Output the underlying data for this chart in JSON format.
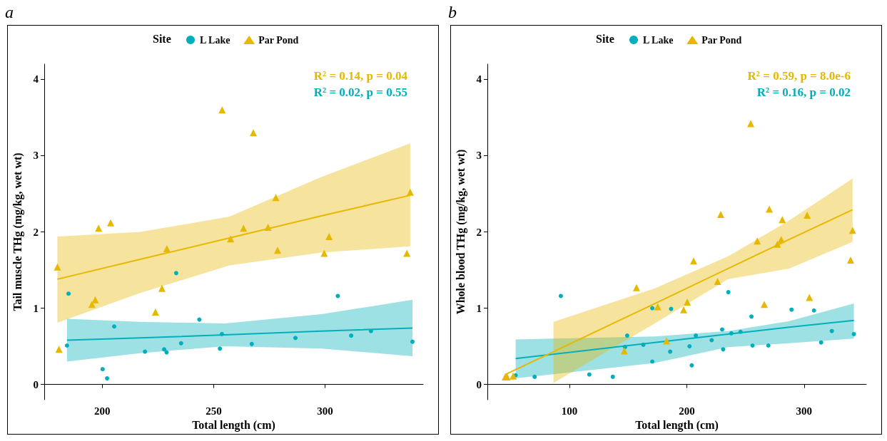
{
  "chart_data": [
    {
      "type": "scatter",
      "title": "a",
      "xlabel": "Total length (cm)",
      "ylabel": "Tail muscle THg (mg/kg, wet wt)",
      "legend_title": "Site",
      "legend": "top",
      "grid": false,
      "annotations": [
        "R² = 0.14, p = 0.04",
        "R² = 0.02, p = 0.55"
      ],
      "xlim": [
        174,
        344
      ],
      "xticks": [
        200,
        250,
        300
      ],
      "ylim": [
        -0.2,
        4.2
      ],
      "yticks": [
        0,
        1,
        2,
        3,
        4
      ],
      "series": [
        {
          "name": "L Lake",
          "marker": "circle",
          "color": "#00afbb",
          "x": [
            184.2,
            184.9,
            200.2,
            202.2,
            205.4,
            219.2,
            227.8,
            228.9,
            233.2,
            235.4,
            243.6,
            252.8,
            253.7,
            267.1,
            286.7,
            305.7,
            311.7,
            320.6,
            339.2
          ],
          "values": [
            0.51,
            1.19,
            0.2,
            0.08,
            0.76,
            0.43,
            0.46,
            0.42,
            1.46,
            0.54,
            0.85,
            0.47,
            0.66,
            0.53,
            0.61,
            1.16,
            0.64,
            0.7,
            0.56
          ]
        },
        {
          "name": "Par Pond",
          "marker": "triangle",
          "color": "#e7b800",
          "x": [
            179.9,
            180.6,
            195.4,
            196.9,
            198.4,
            203.8,
            223.9,
            226.8,
            229,
            253.8,
            257.6,
            263.4,
            267.8,
            274.4,
            277.9,
            278.7,
            299.6,
            301.8,
            336.7,
            338.2
          ],
          "values": [
            1.54,
            0.46,
            1.05,
            1.11,
            2.05,
            2.12,
            0.95,
            1.26,
            1.78,
            3.6,
            1.91,
            2.05,
            3.3,
            2.06,
            2.45,
            1.76,
            1.72,
            1.94,
            1.72,
            2.52
          ]
        },
        {
          "type": "line",
          "color": "#00afbb",
          "x": [
            184.2,
            217,
            255,
            298.3,
            339.2
          ],
          "values": [
            0.58,
            0.61,
            0.65,
            0.7,
            0.74
          ],
          "lower": [
            0.3,
            0.41,
            0.5,
            0.47,
            0.37
          ],
          "upper": [
            0.86,
            0.82,
            0.8,
            0.92,
            1.11
          ]
        },
        {
          "type": "line",
          "color": "#e7b800",
          "x": [
            179.9,
            217,
            257.1,
            298.3,
            338.2
          ],
          "values": [
            1.38,
            1.64,
            1.92,
            2.21,
            2.48
          ],
          "lower": [
            0.81,
            1.2,
            1.56,
            1.73,
            1.81
          ],
          "upper": [
            1.94,
            2.0,
            2.2,
            2.72,
            3.16
          ]
        }
      ]
    },
    {
      "type": "scatter",
      "title": "b",
      "xlabel": "Total length (cm)",
      "ylabel": "Whole blood THg (mg/kg, wet wt)",
      "legend_title": "Site",
      "legend": "top",
      "grid": false,
      "annotations": [
        "R² = 0.59, p = 8.0e-6",
        "R² = 0.16, p = 0.02"
      ],
      "xlim": [
        30,
        353
      ],
      "xticks": [
        100,
        200,
        300
      ],
      "ylim": [
        -0.2,
        4.2
      ],
      "yticks": [
        0,
        1,
        2,
        3,
        4
      ],
      "series": [
        {
          "name": "L Lake",
          "marker": "circle",
          "color": "#00afbb",
          "x": [
            54.1,
            70.3,
            92.6,
            116.9,
            136.9,
            147.3,
            149.2,
            162.9,
            170.6,
            170.6,
            185.8,
            186.6,
            202.3,
            204.2,
            207.7,
            221.2,
            230.1,
            231,
            235.4,
            237.9,
            245.8,
            255.1,
            256,
            269.5,
            289.3,
            308.4,
            314.5,
            323.6,
            342.4
          ],
          "values": [
            0.12,
            0.1,
            1.16,
            0.13,
            0.1,
            0.49,
            0.64,
            0.52,
            1.0,
            0.3,
            0.43,
            0.99,
            0.5,
            0.25,
            0.64,
            0.58,
            0.72,
            0.46,
            1.21,
            0.67,
            0.69,
            0.89,
            0.51,
            0.51,
            0.98,
            0.97,
            0.55,
            0.7,
            0.66
          ]
        },
        {
          "name": "Par Pond",
          "marker": "triangle",
          "color": "#e7b800",
          "x": [
            45.3,
            46.8,
            52,
            146.7,
            157.1,
            175.2,
            182.7,
            197.3,
            200.4,
            205.8,
            226.2,
            228.9,
            254.5,
            260.1,
            266,
            270.3,
            277.2,
            280.5,
            281.4,
            302.6,
            304.5,
            339.6,
            341.3
          ],
          "values": [
            0.1,
            0.1,
            0.11,
            0.44,
            1.27,
            1.02,
            0.57,
            0.98,
            1.08,
            1.62,
            1.35,
            2.23,
            3.42,
            1.88,
            1.05,
            2.3,
            1.84,
            1.9,
            2.16,
            2.22,
            1.14,
            1.63,
            2.02
          ]
        },
        {
          "type": "line",
          "color": "#00afbb",
          "x": [
            54.1,
            172.7,
            235.2,
            287.2,
            342.4
          ],
          "values": [
            0.34,
            0.55,
            0.66,
            0.75,
            0.84
          ],
          "lower": [
            0.08,
            0.28,
            0.49,
            0.54,
            0.6
          ],
          "upper": [
            0.59,
            0.63,
            0.7,
            0.83,
            1.06
          ]
        },
        {
          "type": "line",
          "color": "#e7b800",
          "x": [
            45.3,
            86.3,
            172.7,
            235.2,
            287.2,
            341.3
          ],
          "values": [
            0.13,
            0.43,
            1.06,
            1.52,
            1.9,
            2.29
          ],
          "lower": [
            null,
            0.02,
            0.8,
            1.38,
            1.52,
            1.87
          ],
          "upper": [
            null,
            0.82,
            1.26,
            1.68,
            2.15,
            2.7
          ]
        }
      ]
    }
  ]
}
